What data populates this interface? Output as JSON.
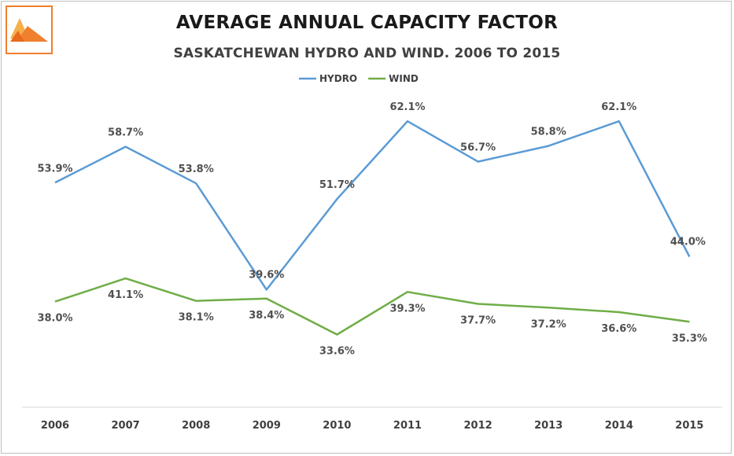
{
  "logo_icon": "triangle-logo-icon",
  "chart_data": {
    "type": "line",
    "title": "AVERAGE ANNUAL CAPACITY FACTOR",
    "subtitle": "SASKATCHEWAN HYDRO AND WIND. 2006 TO 2015",
    "xlabel": "",
    "ylabel": "",
    "categories": [
      "2006",
      "2007",
      "2008",
      "2009",
      "2010",
      "2011",
      "2012",
      "2013",
      "2014",
      "2015"
    ],
    "series": [
      {
        "name": "HYDRO",
        "color": "#5b9bd5",
        "values": [
          53.9,
          58.7,
          53.8,
          39.6,
          51.7,
          62.1,
          56.7,
          58.8,
          62.1,
          44.0
        ],
        "labels": [
          "53.9%",
          "58.7%",
          "53.8%",
          "39.6%",
          "51.7%",
          "62.1%",
          "56.7%",
          "58.8%",
          "62.1%",
          "44.0%"
        ]
      },
      {
        "name": "WIND",
        "color": "#70ad47",
        "values": [
          38.0,
          41.1,
          38.1,
          38.4,
          33.6,
          39.3,
          37.7,
          37.2,
          36.6,
          35.3
        ],
        "labels": [
          "38.0%",
          "41.1%",
          "38.1%",
          "38.4%",
          "33.6%",
          "39.3%",
          "37.7%",
          "37.2%",
          "36.6%",
          "35.3%"
        ]
      }
    ],
    "ylim": [
      20,
      70
    ],
    "grid": false,
    "legend": "top-center"
  }
}
